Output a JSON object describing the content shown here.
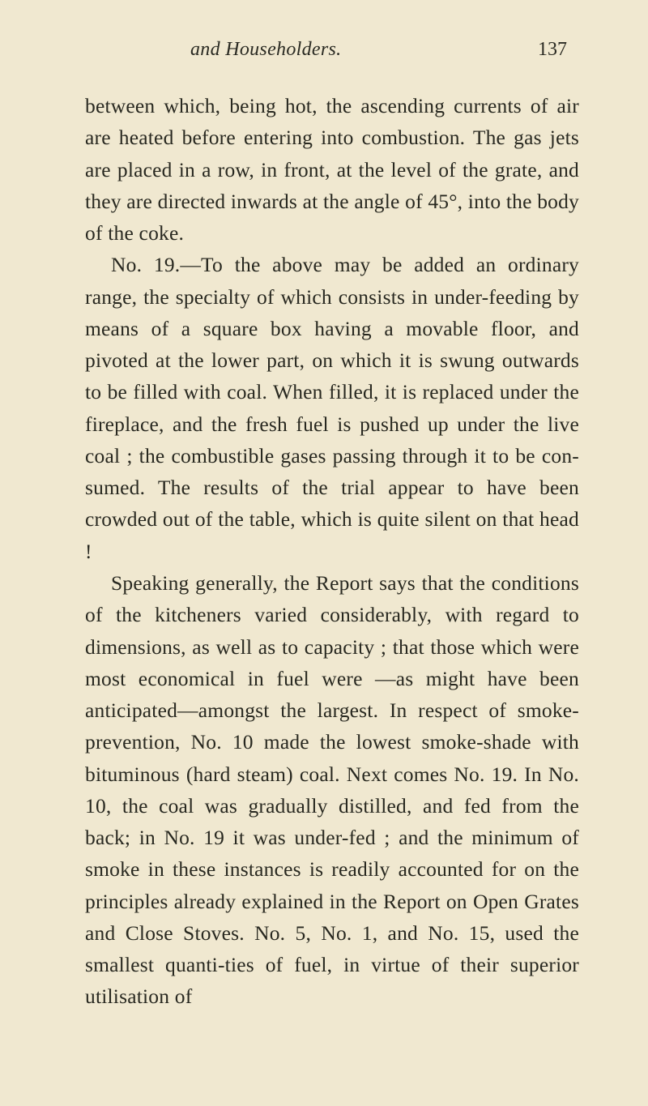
{
  "header": {
    "title": "and Householders.",
    "page_number": "137"
  },
  "paragraphs": {
    "p1": "between which, being hot, the ascending currents of air are heated before entering into combustion. The gas jets are placed in a row, in front, at the level of the grate, and they are directed inwards at the angle of 45°, into the body of the coke.",
    "p2": "No. 19.—To the above may be added an ordinary range, the specialty of which consists in under-feeding by means of a square box having a movable floor, and pivoted at the lower part, on which it is swung outwards to be filled with coal. When filled, it is replaced under the fireplace, and the fresh fuel is pushed up under the live coal ; the combustible gases passing through it to be con-sumed. The results of the trial appear to have been crowded out of the table, which is quite silent on that head !",
    "p3": "Speaking generally, the Report says that the conditions of the kitcheners varied considerably, with regard to dimensions, as well as to capacity ; that those which were most economical in fuel were —as might have been anticipated—amongst the largest. In respect of smoke-prevention, No. 10 made the lowest smoke-shade with bituminous (hard steam) coal. Next comes No. 19. In No. 10, the coal was gradually distilled, and fed from the back; in No. 19 it was under-fed ; and the minimum of smoke in these instances is readily accounted for on the principles already explained in the Report on Open Grates and Close Stoves. No. 5, No. 1, and No. 15, used the smallest quanti-ties of fuel, in virtue of their superior utilisation of"
  },
  "colors": {
    "page_bg": "#f0e8d0",
    "text": "#282820"
  }
}
